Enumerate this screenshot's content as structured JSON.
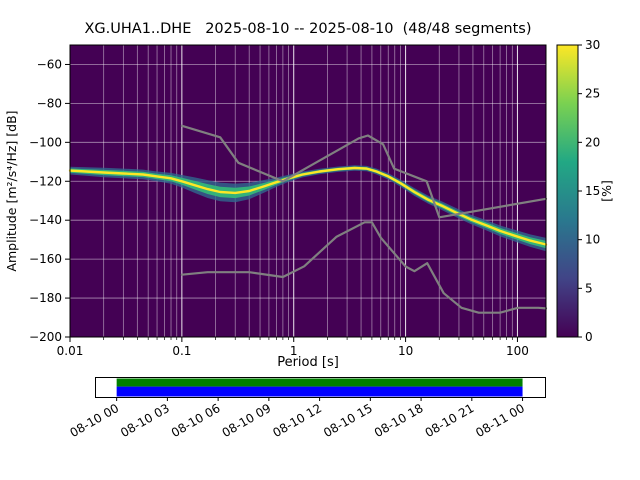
{
  "chart_data": {
    "type": "heatmap",
    "title": "XG.UHA1..DHE   2025-08-10 -- 2025-08-10  (48/48 segments)",
    "xlabel": "Period [s]",
    "ylabel": "Amplitude [m²/s⁴/Hz] [dB]",
    "xscale": "log",
    "xlim": [
      0.01,
      180
    ],
    "ylim": [
      -200,
      -50
    ],
    "xticks": [
      0.01,
      0.1,
      1,
      10,
      100
    ],
    "xtick_labels": [
      "0.01",
      "0.1",
      "1",
      "10",
      "100"
    ],
    "yticks": [
      -200,
      -180,
      -160,
      -140,
      -120,
      -100,
      -80,
      -60
    ],
    "ytick_labels": [
      "−200",
      "−180",
      "−160",
      "−140",
      "−120",
      "−100",
      "−80",
      "−60"
    ],
    "grid": true,
    "background_color": "#440154",
    "grid_color": "#ffffff",
    "colormap": "viridis",
    "colormap_stops": [
      [
        0,
        "#440154"
      ],
      [
        0.2,
        "#414487"
      ],
      [
        0.4,
        "#2a788e"
      ],
      [
        0.6,
        "#22a884"
      ],
      [
        0.8,
        "#7ad151"
      ],
      [
        1,
        "#fde725"
      ]
    ],
    "band_colors": {
      "outer": "#31688e",
      "mid": "#35b779",
      "core": "#fde725"
    },
    "colorbar": {
      "label": "[%]",
      "lim": [
        0,
        30
      ],
      "ticks": [
        0,
        5,
        10,
        15,
        20,
        25,
        30
      ],
      "tick_labels": [
        "0",
        "5",
        "10",
        "15",
        "20",
        "25",
        "30"
      ]
    },
    "psd_mode": {
      "name": "PSD probability density (mode line with spread halfwidth in dB)",
      "points": [
        [
          0.01,
          -114.5,
          2.0
        ],
        [
          0.014,
          -115.0,
          2.2
        ],
        [
          0.02,
          -115.5,
          2.4
        ],
        [
          0.03,
          -116.0,
          2.5
        ],
        [
          0.045,
          -116.5,
          2.5
        ],
        [
          0.06,
          -117.5,
          2.5
        ],
        [
          0.08,
          -118.5,
          2.8
        ],
        [
          0.1,
          -120.0,
          3.2
        ],
        [
          0.13,
          -122.0,
          4.0
        ],
        [
          0.17,
          -124.0,
          4.6
        ],
        [
          0.22,
          -125.5,
          4.8
        ],
        [
          0.3,
          -126.0,
          4.8
        ],
        [
          0.4,
          -125.0,
          4.2
        ],
        [
          0.55,
          -122.5,
          3.2
        ],
        [
          0.7,
          -120.5,
          2.4
        ],
        [
          0.9,
          -118.5,
          1.8
        ],
        [
          1.2,
          -116.5,
          1.5
        ],
        [
          1.7,
          -115.0,
          1.4
        ],
        [
          2.5,
          -113.8,
          1.4
        ],
        [
          3.5,
          -113.2,
          1.4
        ],
        [
          4.5,
          -113.5,
          1.4
        ],
        [
          5.5,
          -115.0,
          1.5
        ],
        [
          7.0,
          -117.5,
          1.6
        ],
        [
          9.0,
          -121.0,
          1.8
        ],
        [
          12.0,
          -125.5,
          2.0
        ],
        [
          16.0,
          -129.5,
          2.1
        ],
        [
          21.0,
          -132.5,
          2.2
        ],
        [
          28.0,
          -136.0,
          2.3
        ],
        [
          38.0,
          -139.5,
          2.4
        ],
        [
          52.0,
          -142.5,
          2.6
        ],
        [
          70.0,
          -145.5,
          2.8
        ],
        [
          95.0,
          -148.0,
          3.0
        ],
        [
          130.0,
          -150.5,
          3.2
        ],
        [
          180.0,
          -152.5,
          3.4
        ]
      ]
    },
    "noise_models": {
      "name": "Peterson noise models (NHNM / NLNM)",
      "color": "#808080",
      "nhnm": [
        [
          0.1,
          -91.5
        ],
        [
          0.22,
          -97.4
        ],
        [
          0.32,
          -110.5
        ],
        [
          0.8,
          -120.0
        ],
        [
          3.8,
          -98.0
        ],
        [
          4.6,
          -96.5
        ],
        [
          6.3,
          -101.0
        ],
        [
          7.9,
          -113.5
        ],
        [
          15.4,
          -120.0
        ],
        [
          20.0,
          -138.5
        ],
        [
          180.0,
          -129.0
        ]
      ],
      "nlnm": [
        [
          0.1,
          -168.0
        ],
        [
          0.17,
          -166.7
        ],
        [
          0.4,
          -166.7
        ],
        [
          0.8,
          -169.2
        ],
        [
          1.24,
          -163.7
        ],
        [
          2.4,
          -148.6
        ],
        [
          4.3,
          -141.1
        ],
        [
          5.0,
          -141.1
        ],
        [
          6.0,
          -149.0
        ],
        [
          10.0,
          -163.8
        ],
        [
          12.0,
          -166.2
        ],
        [
          15.6,
          -162.1
        ],
        [
          21.9,
          -177.5
        ],
        [
          31.6,
          -185.0
        ],
        [
          45.0,
          -187.5
        ],
        [
          70.0,
          -187.5
        ],
        [
          101.0,
          -185.0
        ],
        [
          154.0,
          -185.0
        ],
        [
          180.0,
          -185.3
        ]
      ]
    },
    "timeline": {
      "tick_labels": [
        "08-10 00",
        "08-10 03",
        "08-10 06",
        "08-10 09",
        "08-10 12",
        "08-10 15",
        "08-10 18",
        "08-10 21",
        "08-11 00"
      ],
      "data_color": "#008000",
      "coverage_color": "#0000ff",
      "coverage_fraction": [
        0.047,
        0.949
      ]
    }
  }
}
